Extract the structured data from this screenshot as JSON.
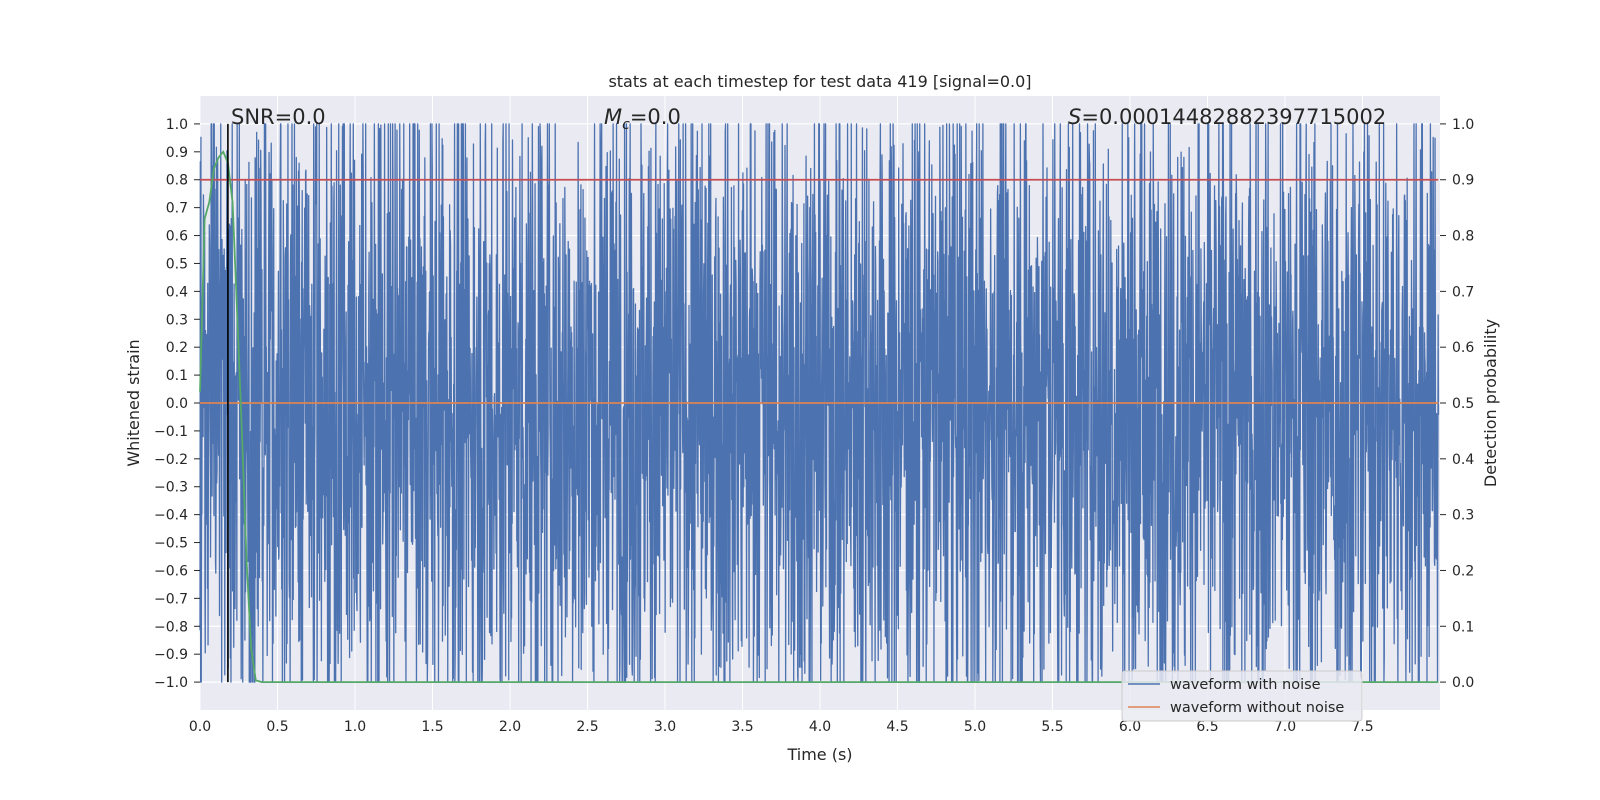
{
  "chart_data": {
    "type": "line",
    "title": "stats at each timestep for test data 419 [signal=0.0]",
    "xlabel": "Time (s)",
    "ylabel_left": "Whitened strain",
    "ylabel_right": "Detection probability",
    "xlim": [
      0.0,
      8.0
    ],
    "ylim_left": [
      -1.1,
      1.1
    ],
    "ylim_right": [
      -0.05,
      1.05
    ],
    "x_ticks": [
      "0.0",
      "0.5",
      "1.0",
      "1.5",
      "2.0",
      "2.5",
      "3.0",
      "3.5",
      "4.0",
      "4.5",
      "5.0",
      "5.5",
      "6.0",
      "6.5",
      "7.0",
      "7.5"
    ],
    "y_ticks_left": [
      "1.0",
      "0.9",
      "0.8",
      "0.7",
      "0.6",
      "0.5",
      "0.4",
      "0.3",
      "0.2",
      "0.1",
      "0.0",
      "−0.1",
      "−0.2",
      "−0.3",
      "−0.4",
      "−0.5",
      "−0.6",
      "−0.7",
      "−0.8",
      "−0.9",
      "−1.0"
    ],
    "y_ticks_right": [
      "1.0",
      "0.9",
      "0.8",
      "0.7",
      "0.6",
      "0.5",
      "0.4",
      "0.3",
      "0.2",
      "0.1",
      "0.0"
    ],
    "grid": true,
    "legend_position": "lower-right",
    "annotations": {
      "snr": "SNR=0.0",
      "mc_symbol": "M",
      "mc_sub": "c",
      "mc_value": "=0.0",
      "s_symbol": "S",
      "s_value": "=0.00014482882397715002"
    },
    "series": [
      {
        "name": "waveform with noise",
        "color": "#4c72b0",
        "axis": "left",
        "sample_rate": 2048,
        "duration": 7.99,
        "amplitude_range": [
          -1.0,
          1.0
        ]
      },
      {
        "name": "waveform without noise",
        "color": "#dd8452",
        "axis": "left",
        "x": [
          0.0,
          7.99
        ],
        "y": [
          0.0,
          0.0
        ]
      },
      {
        "color": "#55a868",
        "axis": "right",
        "x": [
          0.0,
          0.03,
          0.06,
          0.09,
          0.12,
          0.15,
          0.18,
          0.21,
          0.24,
          0.27,
          0.3,
          0.33,
          0.36,
          0.4,
          0.5,
          1.0,
          2.0,
          4.0,
          6.0,
          7.99
        ],
        "y": [
          0.52,
          0.83,
          0.86,
          0.92,
          0.94,
          0.95,
          0.93,
          0.86,
          0.66,
          0.45,
          0.22,
          0.06,
          0.003,
          0.0,
          0.0,
          0.0,
          0.0,
          0.0,
          0.0,
          0.0
        ]
      },
      {
        "color": "#c44e52",
        "axis": "right",
        "x": [
          0.0,
          7.99
        ],
        "y": [
          0.9,
          0.9
        ]
      }
    ],
    "vertical_marker": {
      "x": 0.18,
      "color": "#000000"
    }
  }
}
